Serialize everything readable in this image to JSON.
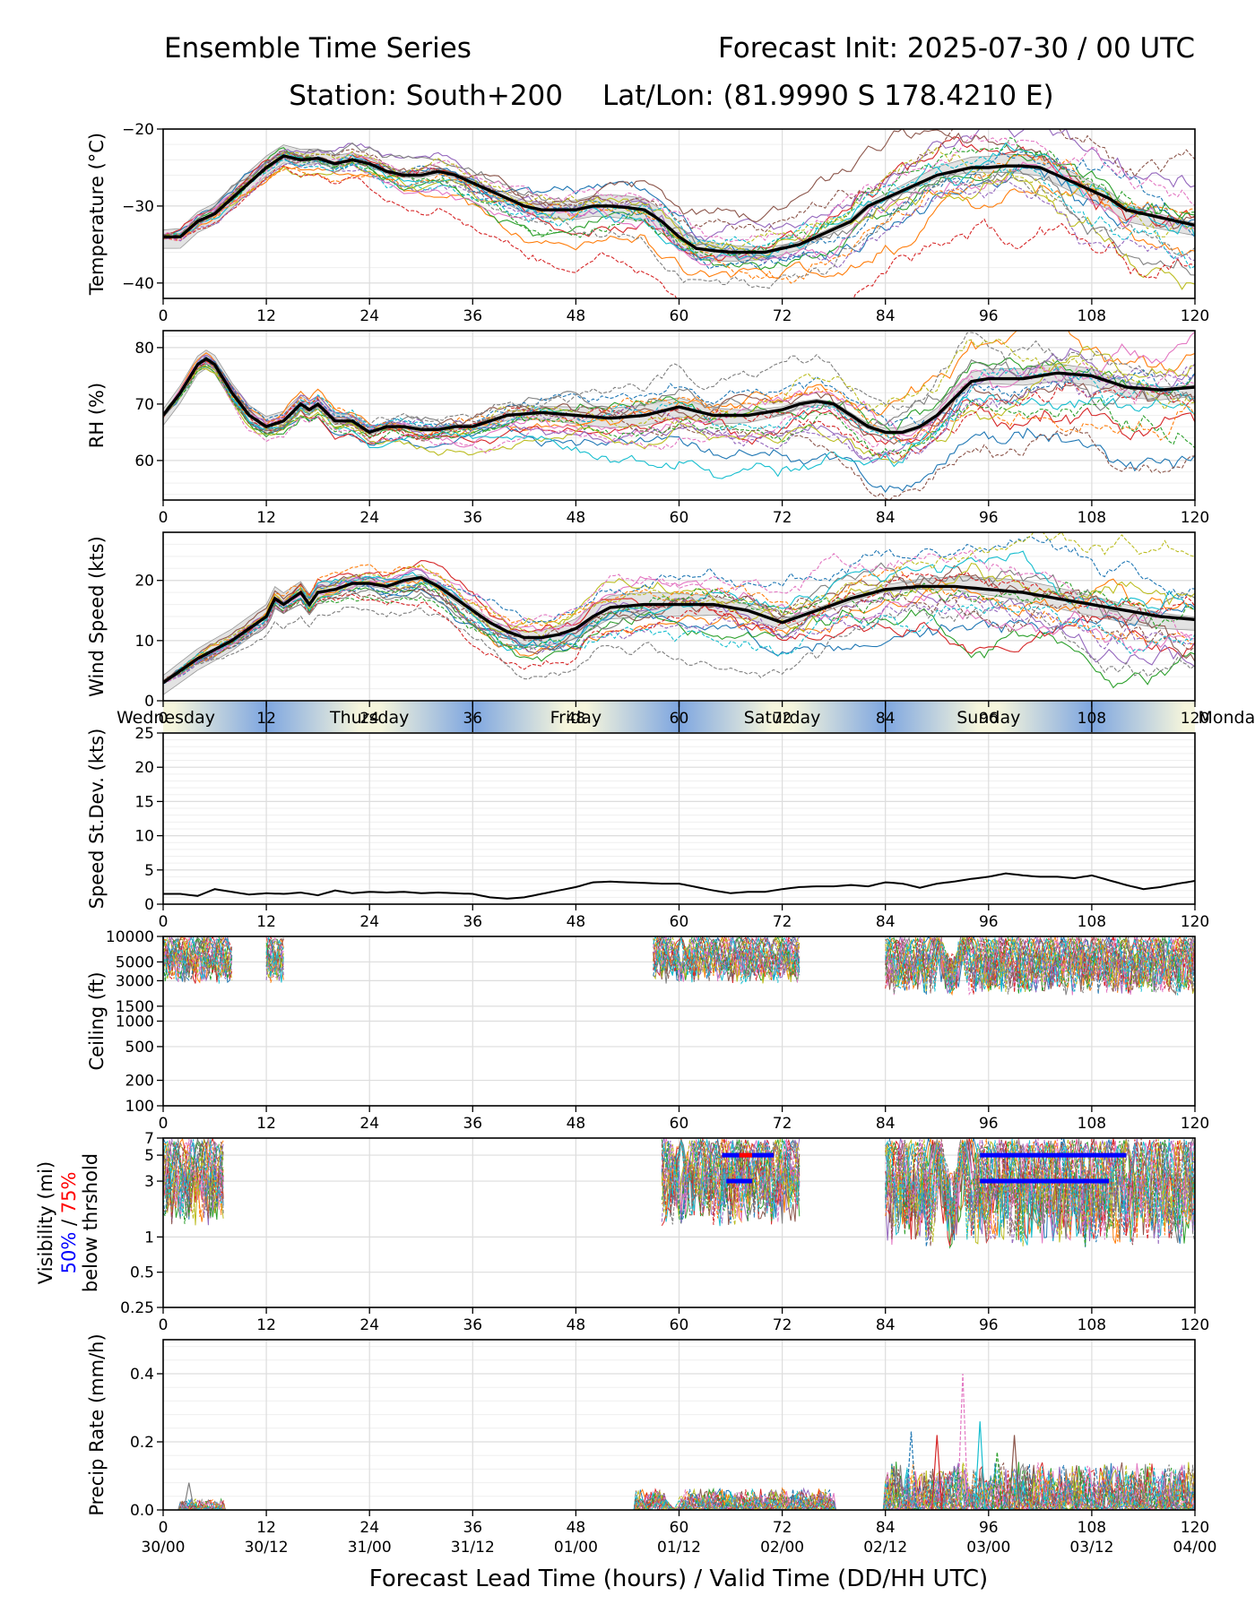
{
  "header": {
    "title_left": "Ensemble Time Series",
    "title_right": "Forecast Init: 2025-07-30 / 00 UTC",
    "station": "Station: South+200",
    "latlon": "Lat/Lon: (81.9990 S 178.4210 E)"
  },
  "xaxis": {
    "label": "Forecast Lead Time (hours) / Valid Time (DD/HH UTC)",
    "lead_ticks": [
      "0",
      "12",
      "24",
      "36",
      "48",
      "60",
      "72",
      "84",
      "96",
      "108",
      "120"
    ],
    "valid_ticks": [
      "30/00",
      "30/12",
      "31/00",
      "31/12",
      "01/00",
      "01/12",
      "02/00",
      "02/12",
      "03/00",
      "03/12",
      "04/00"
    ],
    "range": [
      0,
      120
    ]
  },
  "day_band": [
    "Wednesday",
    "Thursday",
    "Friday",
    "Saturday",
    "Sunday",
    "Monday"
  ],
  "colors": {
    "ensemble": [
      "#1f77b4",
      "#ff7f0e",
      "#2ca02c",
      "#d62728",
      "#9467bd",
      "#8c564b",
      "#e377c2",
      "#7f7f7f",
      "#bcbd22",
      "#17becf"
    ],
    "mean": "#000000",
    "spread": "#bbbbbb",
    "threshold_50": "#0000ff",
    "threshold_75": "#ff0000",
    "day_band_edge": "#7ea6e0",
    "day_band_mid": "#f5f5dc"
  },
  "chart_data": [
    {
      "type": "line",
      "id": "temperature",
      "ylabel": "Temperature (°C)",
      "ylim": [
        -42,
        -20
      ],
      "yticks": [
        -40,
        -30,
        -20
      ],
      "ytick_labels": [
        "−40",
        "−30",
        "−20"
      ],
      "scale": "linear",
      "ensemble": "spaghetti lines with grey spread band",
      "mean": {
        "x": [
          0,
          2,
          4,
          6,
          8,
          10,
          12,
          14,
          16,
          18,
          20,
          22,
          24,
          26,
          28,
          30,
          32,
          34,
          36,
          38,
          40,
          42,
          44,
          46,
          48,
          50,
          52,
          54,
          56,
          58,
          60,
          62,
          64,
          66,
          68,
          70,
          72,
          74,
          76,
          78,
          80,
          82,
          84,
          86,
          88,
          90,
          92,
          94,
          96,
          98,
          100,
          102,
          104,
          106,
          108,
          110,
          112,
          114,
          116,
          118,
          120
        ],
        "y": [
          -34,
          -34,
          -32,
          -31,
          -29,
          -27,
          -25,
          -23.5,
          -24,
          -23.8,
          -24.5,
          -24,
          -24.5,
          -25.5,
          -26,
          -26,
          -25.5,
          -26,
          -27,
          -28,
          -29,
          -30,
          -30.5,
          -30.5,
          -30.5,
          -30,
          -30,
          -30.2,
          -30.5,
          -32,
          -34,
          -35.5,
          -35.8,
          -36,
          -36,
          -36,
          -35.5,
          -35,
          -34,
          -33,
          -32,
          -30,
          -29,
          -28,
          -27,
          -26,
          -25.5,
          -25,
          -25,
          -24.8,
          -24.8,
          -25,
          -26,
          -27,
          -28,
          -29,
          -30.5,
          -31,
          -31.5,
          -32,
          -32.5
        ]
      },
      "spread_halfwidth": 1.5
    },
    {
      "type": "line",
      "id": "rh",
      "ylabel": "RH (%)",
      "ylim": [
        53,
        83
      ],
      "yticks": [
        60,
        70,
        80
      ],
      "ytick_labels": [
        "60",
        "70",
        "80"
      ],
      "scale": "linear",
      "mean": {
        "x": [
          0,
          2,
          4,
          5,
          6,
          8,
          10,
          12,
          14,
          16,
          17,
          18,
          20,
          22,
          24,
          26,
          28,
          30,
          32,
          34,
          36,
          38,
          40,
          44,
          48,
          52,
          56,
          60,
          64,
          68,
          72,
          74,
          76,
          78,
          80,
          82,
          84,
          86,
          88,
          90,
          92,
          94,
          96,
          100,
          104,
          108,
          112,
          116,
          120
        ],
        "y": [
          68,
          72,
          77,
          78,
          77,
          72,
          68,
          66,
          67,
          70,
          69,
          70,
          67,
          67,
          65,
          66,
          66,
          65.5,
          65.5,
          66,
          66,
          67,
          68,
          68.5,
          68,
          67.5,
          68,
          69.5,
          68,
          68,
          69,
          70,
          70.5,
          70,
          68,
          66,
          65,
          65,
          66,
          68,
          71,
          74,
          74.5,
          74.5,
          75.5,
          75,
          73,
          72.5,
          73
        ]
      },
      "spread_halfwidth": 1.8
    },
    {
      "type": "line",
      "id": "wind_speed",
      "ylabel": "Wind Speed (kts)",
      "ylim": [
        0,
        28
      ],
      "yticks": [
        0,
        10,
        20
      ],
      "ytick_labels": [
        "0",
        "10",
        "20"
      ],
      "scale": "linear",
      "mean": {
        "x": [
          0,
          2,
          4,
          6,
          8,
          10,
          12,
          13,
          14,
          16,
          17,
          18,
          20,
          22,
          24,
          26,
          28,
          30,
          32,
          34,
          36,
          38,
          40,
          42,
          44,
          46,
          48,
          50,
          52,
          56,
          60,
          64,
          68,
          72,
          76,
          80,
          84,
          88,
          92,
          96,
          100,
          104,
          108,
          112,
          116,
          120
        ],
        "y": [
          3,
          5,
          7,
          8.5,
          10,
          12,
          14,
          17,
          16,
          18,
          16,
          18,
          18.5,
          19.5,
          19.5,
          19,
          20,
          20.5,
          19,
          17,
          15,
          13,
          11.5,
          10.5,
          10.5,
          11,
          12,
          14,
          15.5,
          16,
          16,
          16,
          15,
          13,
          15,
          17,
          18.5,
          19,
          19,
          18.5,
          18,
          17,
          16,
          15,
          14,
          13.5
        ]
      },
      "spread_halfwidth": 2
    },
    {
      "type": "line",
      "id": "speed_stdev",
      "ylabel": "Speed St.Dev. (kts)",
      "ylim": [
        0,
        25
      ],
      "yticks": [
        0,
        5,
        10,
        15,
        20,
        25
      ],
      "ytick_labels": [
        "0",
        "5",
        "10",
        "15",
        "20",
        "25"
      ],
      "scale": "linear",
      "mean": {
        "x": [
          0,
          2,
          4,
          6,
          8,
          10,
          12,
          14,
          16,
          18,
          20,
          22,
          24,
          26,
          28,
          30,
          32,
          34,
          36,
          38,
          40,
          42,
          44,
          46,
          48,
          50,
          52,
          54,
          56,
          58,
          60,
          62,
          64,
          66,
          68,
          70,
          72,
          74,
          76,
          78,
          80,
          82,
          84,
          86,
          88,
          90,
          92,
          94,
          96,
          98,
          100,
          102,
          104,
          106,
          108,
          110,
          112,
          114,
          116,
          118,
          120
        ],
        "y": [
          1.5,
          1.5,
          1.2,
          2.2,
          1.8,
          1.4,
          1.6,
          1.5,
          1.7,
          1.3,
          2.0,
          1.6,
          1.8,
          1.7,
          1.8,
          1.6,
          1.7,
          1.6,
          1.5,
          1.0,
          0.8,
          1.0,
          1.5,
          2.0,
          2.5,
          3.2,
          3.3,
          3.2,
          3.1,
          3.0,
          3.0,
          2.5,
          2.0,
          1.6,
          1.8,
          1.8,
          2.2,
          2.5,
          2.6,
          2.6,
          2.8,
          2.6,
          3.2,
          3.0,
          2.4,
          3.0,
          3.3,
          3.7,
          4.0,
          4.5,
          4.2,
          4.0,
          4.0,
          3.8,
          4.2,
          3.5,
          2.8,
          2.2,
          2.5,
          3.0,
          3.4
        ]
      }
    },
    {
      "type": "line",
      "id": "ceiling",
      "ylabel": "Ceiling (ft)",
      "ylim": [
        100,
        10000
      ],
      "yticks": [
        100,
        200,
        500,
        1000,
        1500,
        3000,
        5000,
        10000
      ],
      "ytick_labels": [
        "100",
        "200",
        "500",
        "1000",
        "1500",
        "3000",
        "5000",
        "10000"
      ],
      "scale": "log",
      "active_ranges": [
        [
          0,
          8
        ],
        [
          12,
          14
        ],
        [
          57,
          74
        ],
        [
          84,
          120
        ]
      ]
    },
    {
      "type": "line",
      "id": "visibility",
      "ylabel": "Visibility (mi)",
      "ylabel2_blue": "50%",
      "ylabel2_sep": " / ",
      "ylabel2_red": "75%",
      "ylabel3": "below thrshold",
      "ylim": [
        0.25,
        7
      ],
      "yticks": [
        0.25,
        0.5,
        1,
        3,
        5,
        7
      ],
      "ytick_labels": [
        "0.25",
        "0.5",
        "1",
        "3",
        "5",
        "7"
      ],
      "scale": "log",
      "active_ranges": [
        [
          0,
          7
        ],
        [
          58,
          74
        ],
        [
          84,
          120
        ]
      ],
      "threshold_50": [
        {
          "x0": 65,
          "x1": 71,
          "y": 5
        },
        {
          "x0": 65.5,
          "x1": 68.5,
          "y": 3
        },
        {
          "x0": 95,
          "x1": 112,
          "y": 5
        },
        {
          "x0": 95,
          "x1": 110,
          "y": 3
        }
      ],
      "threshold_75": [
        {
          "x0": 67,
          "x1": 68.5,
          "y": 5
        }
      ]
    },
    {
      "type": "line",
      "id": "precip_rate",
      "ylabel": "Precip Rate (mm/h)",
      "ylim": [
        0,
        0.5
      ],
      "yticks": [
        0.0,
        0.2,
        0.4
      ],
      "ytick_labels": [
        "0.0",
        "0.2",
        "0.4"
      ],
      "scale": "linear",
      "peaks": [
        {
          "x": 3,
          "y": 0.08
        },
        {
          "x": 87,
          "y": 0.23
        },
        {
          "x": 90,
          "y": 0.22
        },
        {
          "x": 93,
          "y": 0.4
        },
        {
          "x": 95,
          "y": 0.26
        },
        {
          "x": 97,
          "y": 0.17
        },
        {
          "x": 99,
          "y": 0.22
        }
      ],
      "active_ranges": [
        [
          2,
          7
        ],
        [
          55,
          78
        ],
        [
          84,
          120
        ]
      ]
    }
  ]
}
